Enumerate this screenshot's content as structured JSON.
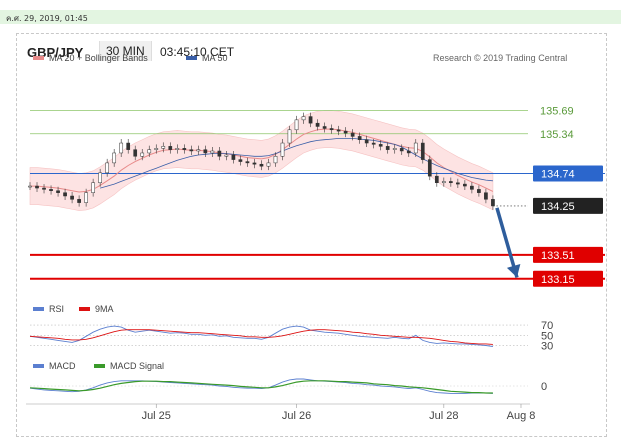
{
  "timestamp": "ค.ศ. 29, 2019, 01:45",
  "header": {
    "symbol": "GBP/JPY",
    "timeframe": "30 MIN",
    "time": "03:45:10 CET"
  },
  "legend": {
    "ma": "MA 20 + Bollinger Bands",
    "ma50": "MA 50",
    "credit": "Research © 2019 Trading Central",
    "rsi": "RSI",
    "rsi_ma": "9MA",
    "macd": "MACD",
    "macd_signal": "MACD Signal"
  },
  "colors": {
    "resistance": "#8dc56a",
    "pivot": "#2b66cc",
    "support": "#e00000",
    "ma20": "#e88a8a",
    "ma50": "#3a5fa8",
    "band_fill": "#fde3e3",
    "arrow": "#2e5d9c",
    "current": "#222222",
    "rsi": "#5b7fd0",
    "nine_ma": "#dd1111",
    "macd": "#5b7fd0",
    "macd_signal": "#3a9a2a"
  },
  "chart_data": {
    "type": "line",
    "price_ylim": [
      132.95,
      135.85
    ],
    "levels": [
      {
        "label": "135.69",
        "value": 135.69,
        "kind": "resistance"
      },
      {
        "label": "135.34",
        "value": 135.34,
        "kind": "resistance"
      },
      {
        "label": "134.74",
        "value": 134.74,
        "kind": "pivot"
      },
      {
        "label": "134.25",
        "value": 134.25,
        "kind": "current"
      },
      {
        "label": "133.51",
        "value": 133.51,
        "kind": "support"
      },
      {
        "label": "133.15",
        "value": 133.15,
        "kind": "support"
      }
    ],
    "price": [
      134.55,
      134.52,
      134.5,
      134.48,
      134.45,
      134.4,
      134.35,
      134.3,
      134.45,
      134.6,
      134.75,
      134.9,
      135.05,
      135.2,
      135.1,
      135.0,
      135.05,
      135.1,
      135.12,
      135.15,
      135.1,
      135.12,
      135.1,
      135.08,
      135.1,
      135.05,
      135.08,
      135.0,
      135.02,
      134.95,
      134.92,
      134.9,
      134.88,
      134.85,
      134.9,
      135.0,
      135.2,
      135.4,
      135.55,
      135.6,
      135.5,
      135.45,
      135.42,
      135.4,
      135.38,
      135.35,
      135.3,
      135.25,
      135.2,
      135.18,
      135.15,
      135.1,
      135.12,
      135.08,
      135.05,
      135.2,
      134.95,
      134.7,
      134.6,
      134.62,
      134.6,
      134.58,
      134.55,
      134.5,
      134.45,
      134.35,
      134.25
    ],
    "ma20": [
      134.55,
      134.55,
      134.54,
      134.53,
      134.52,
      134.5,
      134.48,
      134.46,
      134.47,
      134.5,
      134.56,
      134.63,
      134.7,
      134.79,
      134.86,
      134.92,
      134.97,
      135.02,
      135.06,
      135.09,
      135.1,
      135.11,
      135.1,
      135.09,
      135.09,
      135.08,
      135.07,
      135.05,
      135.04,
      135.02,
      135.0,
      134.98,
      134.97,
      134.96,
      134.98,
      135.03,
      135.1,
      135.18,
      135.26,
      135.33,
      135.37,
      135.4,
      135.41,
      135.41,
      135.4,
      135.38,
      135.36,
      135.33,
      135.3,
      135.27,
      135.24,
      135.21,
      135.18,
      135.15,
      135.13,
      135.12,
      135.07,
      134.99,
      134.9,
      134.83,
      134.77,
      134.71,
      134.66,
      134.61,
      134.57,
      134.52,
      134.47
    ],
    "ma50_start_index": 10,
    "ma50": [
      134.52,
      134.55,
      134.58,
      134.62,
      134.66,
      134.7,
      134.74,
      134.78,
      134.82,
      134.86,
      134.9,
      134.94,
      134.97,
      135.0,
      135.02,
      135.03,
      135.04,
      135.04,
      135.04,
      135.03,
      135.02,
      135.01,
      135.0,
      135.0,
      135.01,
      135.04,
      135.08,
      135.12,
      135.16,
      135.19,
      135.22,
      135.24,
      135.25,
      135.26,
      135.27,
      135.27,
      135.27,
      135.26,
      135.25,
      135.24,
      135.22,
      135.2,
      135.18,
      135.14,
      135.08,
      135.02,
      134.96,
      134.91,
      134.86,
      134.82,
      134.78,
      134.74,
      134.71,
      134.68,
      134.66,
      134.64,
      134.63
    ],
    "band_width": 0.28,
    "rsi": {
      "ylim": [
        25,
        80
      ],
      "ticks": [
        {
          "value": 70,
          "label": "70"
        },
        {
          "value": 50,
          "label": "50"
        },
        {
          "value": 30,
          "label": "30"
        }
      ],
      "values": [
        48,
        46,
        44,
        42,
        40,
        38,
        36,
        40,
        48,
        56,
        62,
        66,
        68,
        66,
        60,
        56,
        58,
        60,
        58,
        56,
        54,
        55,
        54,
        52,
        52,
        50,
        51,
        48,
        49,
        46,
        45,
        44,
        44,
        42,
        46,
        54,
        62,
        66,
        68,
        66,
        60,
        58,
        56,
        55,
        54,
        52,
        50,
        48,
        47,
        46,
        45,
        44,
        46,
        44,
        43,
        50,
        40,
        36,
        34,
        35,
        34,
        33,
        33,
        32,
        31,
        30,
        28
      ]
    },
    "rsi_ma": [
      48,
      47,
      46,
      45,
      44,
      42,
      41,
      41,
      42,
      45,
      49,
      53,
      57,
      60,
      61,
      61,
      61,
      61,
      60,
      59,
      58,
      57,
      56,
      55,
      55,
      54,
      53,
      52,
      51,
      50,
      49,
      47,
      47,
      46,
      46,
      47,
      49,
      52,
      55,
      58,
      60,
      61,
      61,
      60,
      59,
      58,
      56,
      55,
      53,
      52,
      50,
      49,
      48,
      47,
      46,
      46,
      45,
      44,
      42,
      40,
      38,
      37,
      35,
      34,
      33,
      33,
      32
    ],
    "macd_axis": {
      "ylim": [
        -0.32,
        0.32
      ],
      "ticks": [
        {
          "value": 0,
          "label": "0"
        }
      ]
    },
    "macd": [
      -0.05,
      -0.07,
      -0.09,
      -0.1,
      -0.11,
      -0.12,
      -0.13,
      -0.12,
      -0.09,
      -0.04,
      0.02,
      0.07,
      0.1,
      0.12,
      0.12,
      0.12,
      0.12,
      0.11,
      0.1,
      0.09,
      0.08,
      0.07,
      0.06,
      0.05,
      0.04,
      0.03,
      0.02,
      0.0,
      -0.01,
      -0.03,
      -0.04,
      -0.05,
      -0.05,
      -0.06,
      -0.04,
      0.02,
      0.09,
      0.14,
      0.16,
      0.16,
      0.14,
      0.12,
      0.11,
      0.1,
      0.09,
      0.08,
      0.06,
      0.05,
      0.03,
      0.02,
      0.0,
      -0.01,
      -0.02,
      -0.04,
      -0.06,
      -0.04,
      -0.08,
      -0.12,
      -0.15,
      -0.16,
      -0.17,
      -0.17,
      -0.17,
      -0.16,
      -0.16,
      -0.16,
      -0.17
    ],
    "macd_signal": [
      -0.04,
      -0.05,
      -0.06,
      -0.07,
      -0.08,
      -0.09,
      -0.1,
      -0.11,
      -0.1,
      -0.08,
      -0.05,
      -0.01,
      0.03,
      0.06,
      0.08,
      0.1,
      0.11,
      0.11,
      0.11,
      0.1,
      0.1,
      0.09,
      0.08,
      0.07,
      0.06,
      0.05,
      0.04,
      0.03,
      0.02,
      0.01,
      -0.01,
      -0.02,
      -0.03,
      -0.04,
      -0.04,
      -0.02,
      0.01,
      0.05,
      0.09,
      0.11,
      0.12,
      0.12,
      0.12,
      0.11,
      0.1,
      0.1,
      0.09,
      0.08,
      0.07,
      0.05,
      0.04,
      0.03,
      0.01,
      0.0,
      -0.02,
      -0.03,
      -0.04,
      -0.06,
      -0.08,
      -0.1,
      -0.12,
      -0.13,
      -0.14,
      -0.15,
      -0.15,
      -0.16,
      -0.16
    ],
    "x_ticks": [
      {
        "label": "Jul 25",
        "index": 18
      },
      {
        "label": "Jul 26",
        "index": 38
      },
      {
        "label": "Jul 28",
        "index": 59
      },
      {
        "label": "Aug 8",
        "index": 70
      }
    ],
    "x_count": 72,
    "forecast_arrow": {
      "from_index": 66,
      "from_value": 134.22,
      "to_index": 69,
      "to_value": 133.17
    }
  }
}
